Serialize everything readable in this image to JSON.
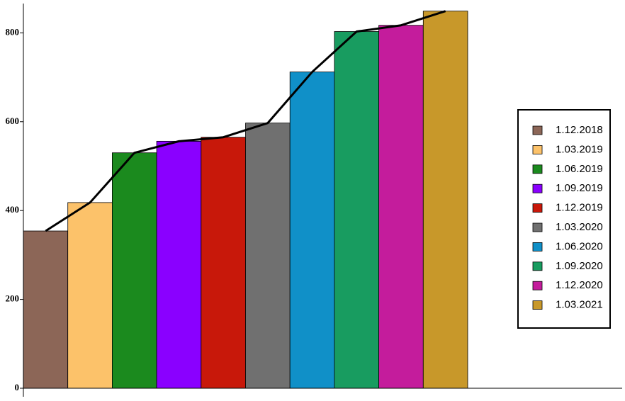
{
  "chart_data": {
    "type": "bar",
    "categories": [
      "1.12.2018",
      "1.03.2019",
      "1.06.2019",
      "1.09.2019",
      "1.12.2019",
      "1.03.2020",
      "1.06.2020",
      "1.09.2020",
      "1.12.2020",
      "1.03.2021"
    ],
    "values": [
      354,
      418,
      530,
      556,
      565,
      597,
      712,
      803,
      817,
      849
    ],
    "colors": [
      "#8c6657",
      "#fcc26a",
      "#1b8a1e",
      "#8a00ff",
      "#c8180a",
      "#707070",
      "#1090c8",
      "#189c60",
      "#c41c9c",
      "#c8982a"
    ],
    "line_color": "#000000",
    "ylim": [
      0,
      866
    ],
    "yticks": [
      0,
      200,
      400,
      600,
      800
    ]
  }
}
